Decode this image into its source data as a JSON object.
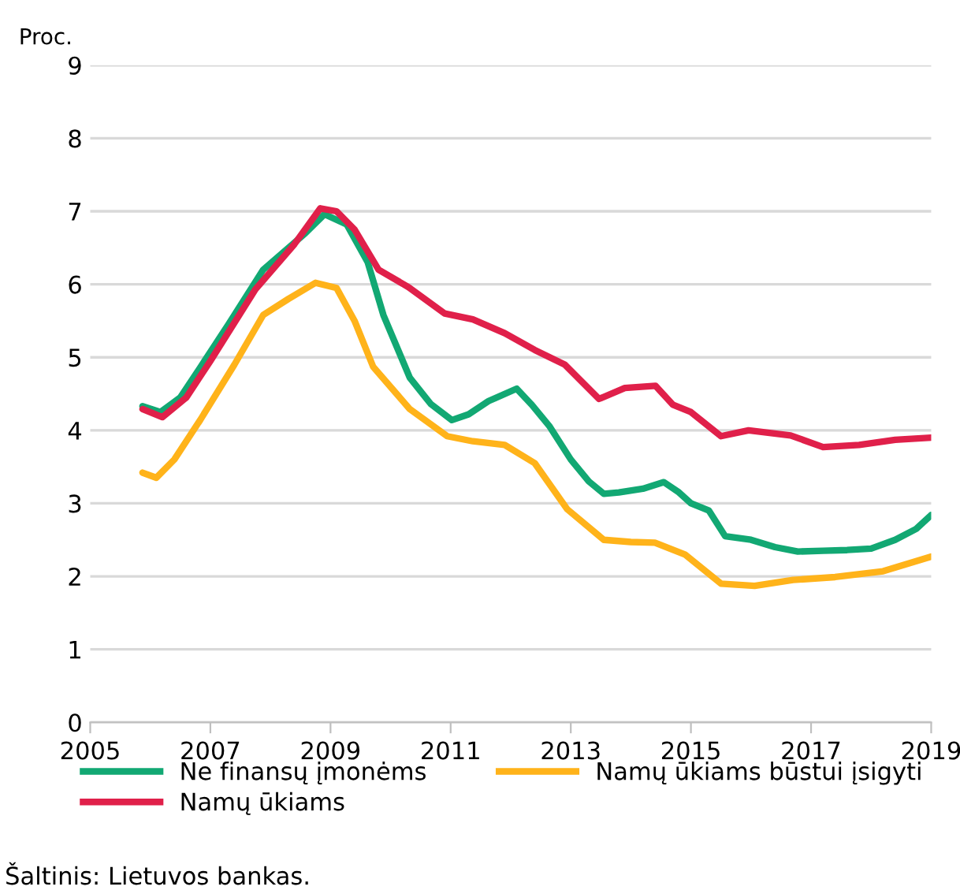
{
  "chart_data": {
    "type": "line",
    "ylabel": "Proc.",
    "xlim": [
      2005,
      2019
    ],
    "xticks": [
      2005,
      2007,
      2009,
      2011,
      2013,
      2015,
      2017,
      2019
    ],
    "ylim": [
      0,
      9
    ],
    "yticks": [
      0,
      1,
      2,
      3,
      4,
      5,
      6,
      7,
      8,
      9
    ],
    "grid": "y",
    "legend": "bottom",
    "marker": "none",
    "line_style": "solid",
    "annotations": [
      "Šaltinis: Lietuvos bankas."
    ],
    "series": [
      {
        "name": "Ne finansų įmonėms",
        "color": "#12a873",
        "x": [
          2005.87,
          2006.17,
          2006.5,
          2006.83,
          2007.3,
          2007.88,
          2008.58,
          2008.9,
          2009.27,
          2009.62,
          2009.88,
          2010.32,
          2010.67,
          2011.02,
          2011.3,
          2011.63,
          2012.1,
          2012.35,
          2012.65,
          2013.0,
          2013.3,
          2013.55,
          2013.8,
          2014.2,
          2014.55,
          2014.8,
          2015.0,
          2015.3,
          2015.57,
          2016.0,
          2016.4,
          2016.78,
          2017.2,
          2017.6,
          2018.0,
          2018.4,
          2018.75,
          2019.0
        ],
        "values": [
          4.33,
          4.25,
          4.45,
          4.86,
          5.45,
          6.2,
          6.7,
          6.96,
          6.82,
          6.3,
          5.58,
          4.72,
          4.36,
          4.14,
          4.22,
          4.4,
          4.57,
          4.35,
          4.05,
          3.6,
          3.3,
          3.13,
          3.15,
          3.2,
          3.29,
          3.15,
          3.0,
          2.9,
          2.55,
          2.5,
          2.4,
          2.34,
          2.35,
          2.36,
          2.38,
          2.5,
          2.65,
          2.84
        ]
      },
      {
        "name": "Namų ūkiams",
        "color": "#e0204a",
        "x": [
          2005.87,
          2006.2,
          2006.6,
          2007.0,
          2007.75,
          2008.4,
          2008.83,
          2009.1,
          2009.4,
          2009.8,
          2010.3,
          2010.9,
          2011.37,
          2011.9,
          2012.4,
          2012.9,
          2013.47,
          2013.9,
          2014.41,
          2014.7,
          2015.0,
          2015.5,
          2015.96,
          2016.66,
          2017.2,
          2017.8,
          2018.4,
          2019.0
        ],
        "values": [
          4.29,
          4.18,
          4.45,
          4.95,
          5.93,
          6.55,
          7.04,
          7.0,
          6.75,
          6.2,
          5.96,
          5.6,
          5.52,
          5.33,
          5.1,
          4.9,
          4.43,
          4.58,
          4.61,
          4.35,
          4.25,
          3.92,
          4.0,
          3.93,
          3.77,
          3.8,
          3.87,
          3.9
        ]
      },
      {
        "name": "Namų ūkiams būstui įsigyti",
        "color": "#ffb31a",
        "x": [
          2005.87,
          2006.1,
          2006.4,
          2006.83,
          2007.4,
          2007.88,
          2008.3,
          2008.75,
          2009.1,
          2009.4,
          2009.71,
          2010.32,
          2010.94,
          2011.37,
          2011.9,
          2012.4,
          2012.94,
          2013.55,
          2014.0,
          2014.4,
          2014.9,
          2015.5,
          2016.06,
          2016.7,
          2017.4,
          2018.2,
          2019.0
        ],
        "values": [
          3.42,
          3.35,
          3.6,
          4.14,
          4.9,
          5.58,
          5.8,
          6.02,
          5.95,
          5.5,
          4.87,
          4.29,
          3.92,
          3.85,
          3.8,
          3.55,
          2.92,
          2.5,
          2.47,
          2.46,
          2.3,
          1.9,
          1.87,
          1.95,
          1.99,
          2.07,
          2.27
        ]
      }
    ]
  }
}
